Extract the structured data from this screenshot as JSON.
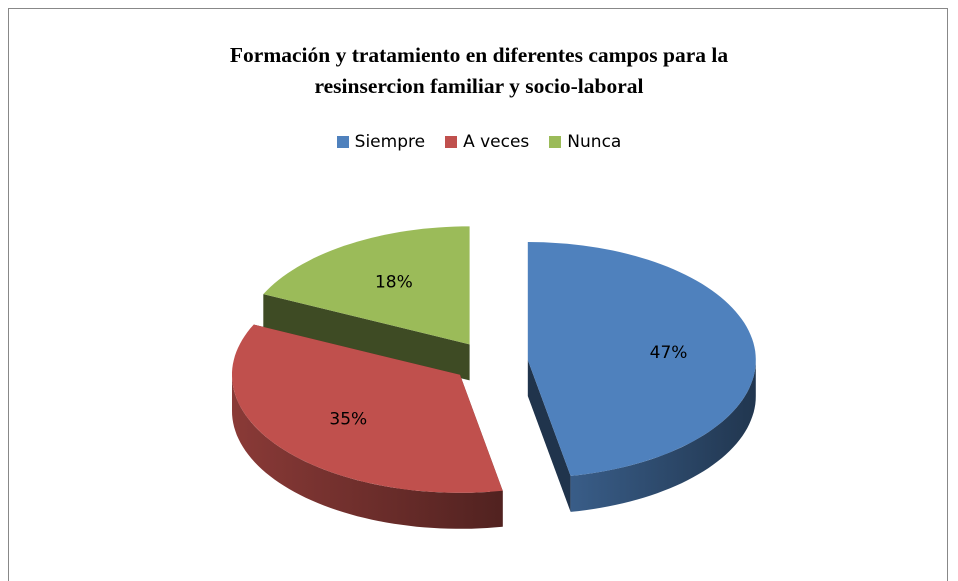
{
  "chart_data": {
    "type": "pie",
    "title": "Formación y tratamiento en diferentes campos para la resinsercion familiar y socio-laboral",
    "categories": [
      "Siempre",
      "A veces",
      "Nunca"
    ],
    "values": [
      47,
      35,
      18
    ],
    "value_labels": [
      "47%",
      "35%",
      "18%"
    ],
    "colors": [
      "#4f81bd",
      "#c0504d",
      "#9bbb59"
    ],
    "legend": "top"
  }
}
